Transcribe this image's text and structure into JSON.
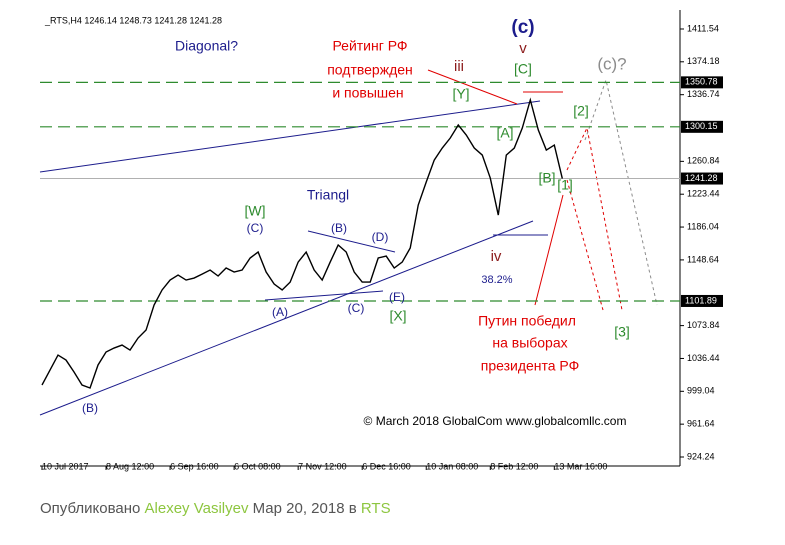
{
  "chart_data": {
    "type": "line",
    "title": "_RTS,H4  1246.14 1248.73 1241.28 1241.28",
    "series": [
      {
        "name": "RTS",
        "color": "#000000",
        "values": [
          1006.2,
          1023.2,
          1040.3,
          1034.6,
          1021.0,
          1006.2,
          1002.8,
          1029.0,
          1043.8,
          1048.3,
          1051.7,
          1046.0,
          1059.7,
          1068.8,
          1097.3,
          1114.4,
          1125.7,
          1131.4,
          1125.7,
          1128.0,
          1132.5,
          1137.1,
          1130.3,
          1139.4,
          1134.8,
          1137.1,
          1150.8,
          1157.6,
          1134.8,
          1121.2,
          1114.4,
          1123.4,
          1146.2,
          1157.6,
          1137.1,
          1125.7,
          1146.2,
          1165.6,
          1157.6,
          1134.8,
          1123.4,
          1123.4,
          1150.8,
          1153.0,
          1139.4,
          1146.2,
          1162.2,
          1211.1,
          1237.3,
          1262.3,
          1276.0,
          1287.4,
          1302.2,
          1290.8,
          1276.0,
          1268.0,
          1241.8,
          1199.7,
          1268.0,
          1276.0,
          1298.8,
          1330.7,
          1296.5,
          1273.7,
          1279.4,
          1241.28
        ]
      }
    ],
    "xlim": [
      -0.25,
      79.7
    ],
    "xticks": [
      {
        "value": 0,
        "label": "10 Jul 2017"
      },
      {
        "value": 8,
        "label": "8 Aug 12:00"
      },
      {
        "value": 16,
        "label": "6 Sep 16:00"
      },
      {
        "value": 24,
        "label": "6 Oct 08:00"
      },
      {
        "value": 32,
        "label": "7 Nov 12:00"
      },
      {
        "value": 40,
        "label": "6 Dec 16:00"
      },
      {
        "value": 48,
        "label": "10 Jan 08:00"
      },
      {
        "value": 56,
        "label": "8 Feb 12:00"
      },
      {
        "value": 64,
        "label": "13 Mar 16:00"
      }
    ],
    "ylim": [
      914.0,
      1428.6
    ],
    "yticks": [
      1411.54,
      1374.18,
      1336.74,
      1260.84,
      1223.44,
      1186.04,
      1148.64,
      1073.84,
      1036.44,
      999.04,
      961.64,
      924.24
    ],
    "levels": [
      {
        "value": 1350.78,
        "color": "#2e8b2e",
        "dashed": true
      },
      {
        "value": 1300.15,
        "color": "#2e8b2e",
        "dashed": true
      },
      {
        "value": 1101.89,
        "color": "#2e8b2e",
        "dashed": true
      },
      {
        "value": 1241.28,
        "color": "#b0b0b0",
        "dashed": false
      }
    ],
    "annotations": [
      "Diagonal?",
      "Рейтинг РФ",
      "подтвержден",
      "и повышен",
      "(c)",
      "v",
      "[C]",
      "iii",
      "[Y]",
      "(c)?",
      "[A]",
      "[2]",
      "[B]",
      "[1]",
      "Triangl",
      "[W]",
      "(C)",
      "(B)",
      "(D)",
      "iv",
      "38.2%",
      "(E)",
      "(A)",
      "(C)",
      "[X]",
      "Путин победил",
      "на выборах",
      "президента РФ",
      "[3]",
      "(B)",
      "© March 2018 GlobalCom www.globalcomllc.com"
    ]
  },
  "footer": {
    "prefix": "Опубликовано",
    "author": "Alexey Vasilyev",
    "date": "Мар 20, 2018 в",
    "tag": "RTS"
  }
}
